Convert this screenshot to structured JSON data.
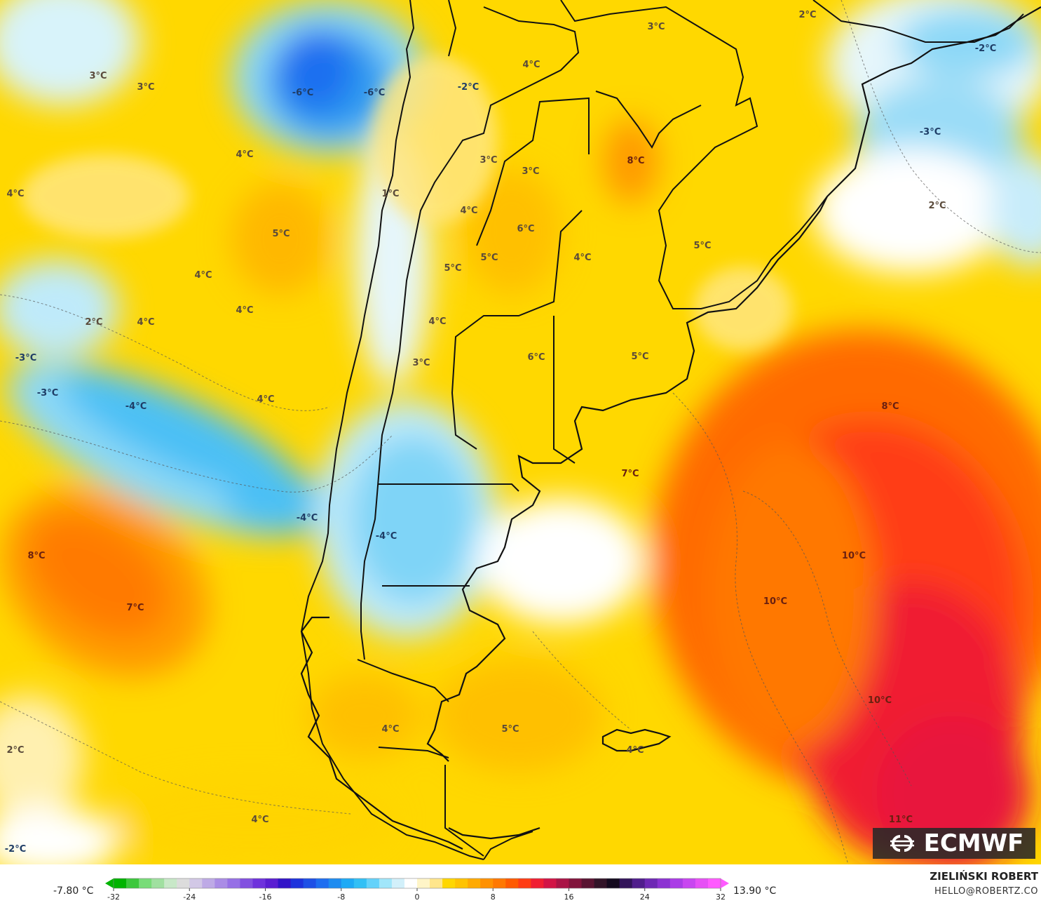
{
  "map": {
    "model_logo": "ECMWF",
    "logo_icon": "ecmwf-logo-icon",
    "temperature_labels": [
      {
        "text": "3°C",
        "tone": "warm"
      },
      {
        "text": "3°C",
        "tone": "warm"
      },
      {
        "text": "-6°C",
        "tone": "cold"
      },
      {
        "text": "-6°C",
        "tone": "cold"
      },
      {
        "text": "-2°C",
        "tone": "cold"
      },
      {
        "text": "4°C",
        "tone": "warm"
      },
      {
        "text": "3°C",
        "tone": "warm"
      },
      {
        "text": "2°C",
        "tone": "warm"
      },
      {
        "text": "-2°C",
        "tone": "cold"
      },
      {
        "text": "-3°C",
        "tone": "cold"
      },
      {
        "text": "4°C",
        "tone": "warm"
      },
      {
        "text": "4°C",
        "tone": "warm"
      },
      {
        "text": "3°C",
        "tone": "warm"
      },
      {
        "text": "3°C",
        "tone": "warm"
      },
      {
        "text": "8°C",
        "tone": "hot"
      },
      {
        "text": "1°C",
        "tone": "warm"
      },
      {
        "text": "5°C",
        "tone": "warm"
      },
      {
        "text": "4°C",
        "tone": "warm"
      },
      {
        "text": "6°C",
        "tone": "warm"
      },
      {
        "text": "2°C",
        "tone": "warm"
      },
      {
        "text": "5°C",
        "tone": "warm"
      },
      {
        "text": "4°C",
        "tone": "warm"
      },
      {
        "text": "5°C",
        "tone": "warm"
      },
      {
        "text": "5°C",
        "tone": "warm"
      },
      {
        "text": "4°C",
        "tone": "warm"
      },
      {
        "text": "4°C",
        "tone": "warm"
      },
      {
        "text": "2°C",
        "tone": "warm"
      },
      {
        "text": "4°C",
        "tone": "warm"
      },
      {
        "text": "4°C",
        "tone": "warm"
      },
      {
        "text": "-3°C",
        "tone": "cold"
      },
      {
        "text": "3°C",
        "tone": "warm"
      },
      {
        "text": "6°C",
        "tone": "warm"
      },
      {
        "text": "5°C",
        "tone": "warm"
      },
      {
        "text": "-3°C",
        "tone": "cold"
      },
      {
        "text": "-4°C",
        "tone": "cold"
      },
      {
        "text": "4°C",
        "tone": "warm"
      },
      {
        "text": "8°C",
        "tone": "hot"
      },
      {
        "text": "7°C",
        "tone": "hot"
      },
      {
        "text": "-4°C",
        "tone": "cold"
      },
      {
        "text": "-4°C",
        "tone": "cold"
      },
      {
        "text": "8°C",
        "tone": "hot"
      },
      {
        "text": "10°C",
        "tone": "hot"
      },
      {
        "text": "7°C",
        "tone": "hot"
      },
      {
        "text": "10°C",
        "tone": "hot"
      },
      {
        "text": "10°C",
        "tone": "hot"
      },
      {
        "text": "4°C",
        "tone": "warm"
      },
      {
        "text": "5°C",
        "tone": "warm"
      },
      {
        "text": "2°C",
        "tone": "warm"
      },
      {
        "text": "4°C",
        "tone": "warm"
      },
      {
        "text": "-2°C",
        "tone": "cold"
      },
      {
        "text": "11°C",
        "tone": "hot"
      },
      {
        "text": "4°C",
        "tone": "warm"
      }
    ]
  },
  "colorbar": {
    "min_value": "-7.80 °C",
    "max_value": "13.90 °C",
    "ticks": [
      "-32",
      "-24",
      "-16",
      "-8",
      "0",
      "8",
      "16",
      "24",
      "32"
    ],
    "scale_min": -32,
    "scale_max": 32,
    "colors": [
      "#00b400",
      "#3cc83c",
      "#78dc78",
      "#a0e0a0",
      "#c8e8c8",
      "#dcdcdc",
      "#d2c8e6",
      "#beaae6",
      "#aa8ce6",
      "#9670e6",
      "#8250e0",
      "#6e32dc",
      "#5a1ed2",
      "#3214c8",
      "#1e32dc",
      "#1e50e6",
      "#1e6ef0",
      "#1e8cf0",
      "#1eaaf5",
      "#32c0f5",
      "#64d2fa",
      "#a0e6fa",
      "#d2f0fa",
      "#ffffff",
      "#fff5c8",
      "#ffe68c",
      "#ffd700",
      "#ffc300",
      "#ffaa00",
      "#ff9100",
      "#ff7800",
      "#ff5a00",
      "#ff3c14",
      "#f01e32",
      "#d21446",
      "#aa1446",
      "#82143c",
      "#5a1432",
      "#321428",
      "#140a1e",
      "#32145a",
      "#501e8c",
      "#6e28b4",
      "#8c32d2",
      "#aa3ce6",
      "#c846f0",
      "#e650f5",
      "#ff5aff"
    ]
  },
  "footer": {
    "author": "ZIELIŃSKI ROBERT",
    "email": "HELLO@ROBERTZ.CO"
  }
}
